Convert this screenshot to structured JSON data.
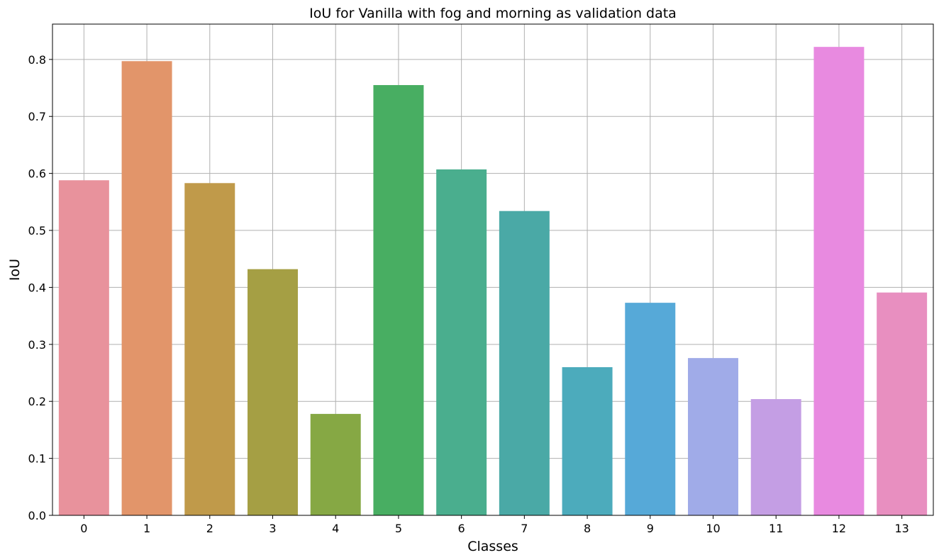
{
  "chart_data": {
    "type": "bar",
    "title": "IoU for Vanilla with fog and morning as validation data",
    "xlabel": "Classes",
    "ylabel": "IoU",
    "categories": [
      "0",
      "1",
      "2",
      "3",
      "4",
      "5",
      "6",
      "7",
      "8",
      "9",
      "10",
      "11",
      "12",
      "13"
    ],
    "values": [
      0.588,
      0.797,
      0.583,
      0.432,
      0.178,
      0.755,
      0.607,
      0.534,
      0.26,
      0.373,
      0.276,
      0.204,
      0.822,
      0.391
    ],
    "colors": [
      "#e8929c",
      "#e2956a",
      "#c09a4a",
      "#a59f44",
      "#86a844",
      "#48ae62",
      "#4aae8e",
      "#4aa9a6",
      "#4cabbc",
      "#56a9d8",
      "#a0abe8",
      "#c49ee4",
      "#e88ae0",
      "#e88fc0"
    ],
    "ylim": [
      0,
      0.862
    ],
    "yticks": [
      "0.0",
      "0.1",
      "0.2",
      "0.3",
      "0.4",
      "0.5",
      "0.6",
      "0.7",
      "0.8"
    ],
    "grid": true,
    "legend": "none"
  }
}
